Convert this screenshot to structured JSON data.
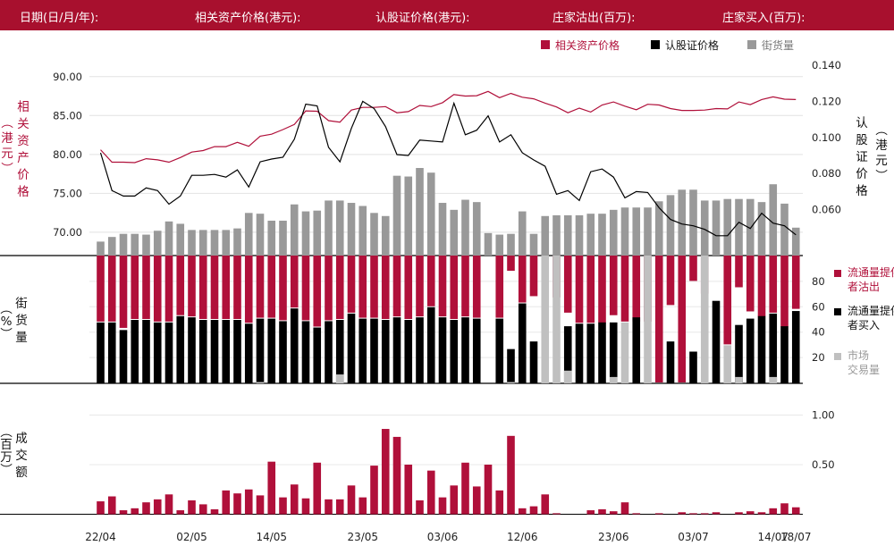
{
  "header": {
    "date_label": "日期(日/月/年):",
    "asset_price_label": "相关资产价格(港元):",
    "warrant_price_label": "认股证价格(港元):",
    "mm_sell_label": "庄家沽出(百万):",
    "mm_buy_label": "庄家买入(百万):"
  },
  "colors": {
    "header_bg": "#a8102e",
    "asset_price": "#b0103a",
    "warrant_price": "#000000",
    "outstanding": "#999999",
    "mm_sell": "#b0103a",
    "mm_buy": "#000000",
    "market": "#c0c0c0",
    "turnover": "#b0103a"
  },
  "chart_data": [
    {
      "type": "line",
      "legend": [
        "相关资产价格",
        "认股证价格",
        "街货量"
      ],
      "left_axis_label": "相关资产价格（港元）",
      "right_axis_label": "认股证价格（港元）",
      "left_ticks": [
        "90.00",
        "85.00",
        "80.00",
        "75.00",
        "70.00"
      ],
      "right_ticks": [
        "0.140",
        "0.120",
        "0.100",
        "0.080",
        "0.060"
      ],
      "left_ylim": [
        67,
        92.5
      ],
      "right_ylim": [
        0.0345,
        0.1445
      ],
      "series": [
        {
          "name": "相关资产价格",
          "axis": "left",
          "color": "#b0103a",
          "values": [
            80.6,
            79.0,
            79.0,
            78.95,
            79.45,
            79.3,
            79.0,
            79.6,
            80.3,
            80.5,
            81.0,
            81.0,
            81.55,
            81.05,
            82.35,
            82.6,
            83.2,
            83.85,
            85.6,
            85.55,
            84.35,
            84.15,
            85.7,
            86.05,
            86.05,
            86.15,
            85.35,
            85.5,
            86.3,
            86.15,
            86.65,
            87.7,
            87.5,
            87.55,
            88.1,
            87.3,
            87.85,
            87.35,
            87.15,
            86.6,
            86.1,
            85.35,
            85.95,
            85.45,
            86.35,
            86.75,
            86.2,
            85.75,
            86.45,
            86.35,
            85.9,
            85.65,
            85.65,
            85.7,
            85.9,
            85.85,
            86.75,
            86.4,
            87.05,
            87.4,
            87.1,
            87.05
          ]
        },
        {
          "name": "认股证价格",
          "axis": "right",
          "color": "#000000",
          "values": [
            0.0915,
            0.0705,
            0.0675,
            0.0675,
            0.072,
            0.0705,
            0.063,
            0.0675,
            0.079,
            0.079,
            0.0795,
            0.078,
            0.082,
            0.0725,
            0.0865,
            0.088,
            0.089,
            0.099,
            0.1185,
            0.1175,
            0.0945,
            0.0865,
            0.105,
            0.12,
            0.116,
            0.106,
            0.0905,
            0.09,
            0.0985,
            0.098,
            0.0975,
            0.119,
            0.1015,
            0.104,
            0.112,
            0.0975,
            0.1015,
            0.0915,
            0.0875,
            0.084,
            0.0685,
            0.0705,
            0.065,
            0.081,
            0.0825,
            0.078,
            0.0665,
            0.07,
            0.0695,
            0.061,
            0.0545,
            0.052,
            0.051,
            0.049,
            0.0455,
            0.0455,
            0.053,
            0.0495,
            0.058,
            0.0525,
            0.051,
            0.046
          ]
        },
        {
          "name": "街货量",
          "axis": "bottom_bar",
          "color": "#999999",
          "unit": "%",
          "values": [
            9,
            12,
            14,
            14,
            13.5,
            16,
            22,
            20.5,
            16.5,
            16.5,
            16.5,
            16.5,
            17.5,
            27.5,
            27,
            22.5,
            22.5,
            33,
            28.5,
            29,
            35.5,
            35.5,
            34,
            32,
            27.5,
            25.5,
            51.5,
            51,
            56.5,
            53.5,
            34,
            29.5,
            36,
            34.5,
            14.5,
            13.5,
            14,
            28.5,
            14,
            25.5,
            26,
            26,
            26,
            27,
            27,
            29.5,
            31,
            31,
            31,
            35,
            39,
            42.5,
            42.5,
            35.5,
            35.5,
            36.5,
            36.5,
            36.5,
            34.5,
            46,
            33.5,
            18
          ]
        }
      ]
    },
    {
      "type": "bar",
      "label": "街货量（%）",
      "ticks": [
        "80",
        "60",
        "40",
        "20"
      ],
      "ylim": [
        0,
        100
      ],
      "legend": [
        "流通量提供者沽出",
        "流通量提供者买入",
        "市场交易量"
      ],
      "series": [
        {
          "name": "流通量提供者沽出",
          "color": "#b0103a",
          "values": [
            52,
            52,
            57,
            50,
            50,
            52,
            52,
            47,
            48,
            50,
            50,
            50,
            50,
            53,
            49,
            49,
            51,
            41,
            51,
            56,
            51,
            50,
            45,
            49,
            49,
            50,
            48,
            50,
            48,
            40,
            48,
            50,
            48,
            49,
            0,
            49,
            12,
            37,
            32,
            0,
            33,
            45,
            53,
            53,
            53,
            47,
            52,
            52,
            52,
            100,
            39,
            100,
            20,
            30,
            0,
            70,
            25,
            44,
            48,
            45,
            56,
            42
          ]
        },
        {
          "name": "流通量提供者买入",
          "color": "#000000",
          "values": [
            48,
            48,
            42,
            50,
            50,
            48,
            48,
            53,
            52,
            50,
            50,
            50,
            50,
            47,
            51,
            51,
            49,
            59,
            49,
            44,
            49,
            50,
            55,
            51,
            51,
            50,
            52,
            50,
            52,
            60,
            52,
            50,
            52,
            51,
            0,
            51,
            27,
            63,
            33,
            0,
            0,
            45,
            47,
            47,
            48,
            48,
            0,
            52,
            0,
            0,
            33,
            0,
            25,
            0,
            65,
            0,
            46,
            51,
            53,
            55,
            45,
            57
          ]
        },
        {
          "name": "市场交易量",
          "color": "#c0c0c0",
          "values": [
            0,
            0,
            0,
            0,
            0,
            0,
            0,
            0,
            0,
            0,
            0,
            0,
            0,
            0,
            1,
            0,
            0,
            0,
            0,
            0,
            0,
            7,
            0,
            0,
            0,
            0,
            0,
            0,
            0,
            0,
            0,
            0,
            0,
            0,
            0,
            0,
            1,
            0,
            0,
            100,
            100,
            10,
            0,
            0,
            0,
            5,
            48,
            0,
            100,
            0,
            0,
            0,
            0,
            100,
            0,
            30,
            5,
            0,
            0,
            5,
            0,
            0
          ]
        }
      ]
    },
    {
      "type": "bar",
      "label": "成交额（百万）",
      "ticks": [
        "1.00",
        "0.50"
      ],
      "ylim": [
        0,
        1.0
      ],
      "series": [
        {
          "name": "成交额",
          "color": "#b0103a",
          "values": [
            0.13,
            0.18,
            0.04,
            0.06,
            0.12,
            0.15,
            0.2,
            0.04,
            0.14,
            0.1,
            0.05,
            0.24,
            0.21,
            0.25,
            0.19,
            0.53,
            0.17,
            0.3,
            0.16,
            0.52,
            0.15,
            0.15,
            0.29,
            0.17,
            0.49,
            0.86,
            0.78,
            0.5,
            0.14,
            0.44,
            0.17,
            0.29,
            0.52,
            0.28,
            0.5,
            0.24,
            0.79,
            0.06,
            0.08,
            0.2,
            0.01,
            0,
            0,
            0.04,
            0.05,
            0.03,
            0.12,
            0.01,
            0,
            0.01,
            0,
            0.02,
            0.01,
            0.01,
            0.02,
            0,
            0.02,
            0.03,
            0.02,
            0.06,
            0.11,
            0.07
          ]
        }
      ]
    }
  ],
  "x_axis": {
    "labels": [
      {
        "text": "22/04",
        "index": 0
      },
      {
        "text": "02/05",
        "index": 8
      },
      {
        "text": "14/05",
        "index": 15
      },
      {
        "text": "23/05",
        "index": 23
      },
      {
        "text": "03/06",
        "index": 30
      },
      {
        "text": "12/06",
        "index": 37
      },
      {
        "text": "23/06",
        "index": 45
      },
      {
        "text": "03/07",
        "index": 52
      },
      {
        "text": "14/07",
        "index": 59
      },
      {
        "text": "18/07",
        "index": 61
      }
    ]
  }
}
